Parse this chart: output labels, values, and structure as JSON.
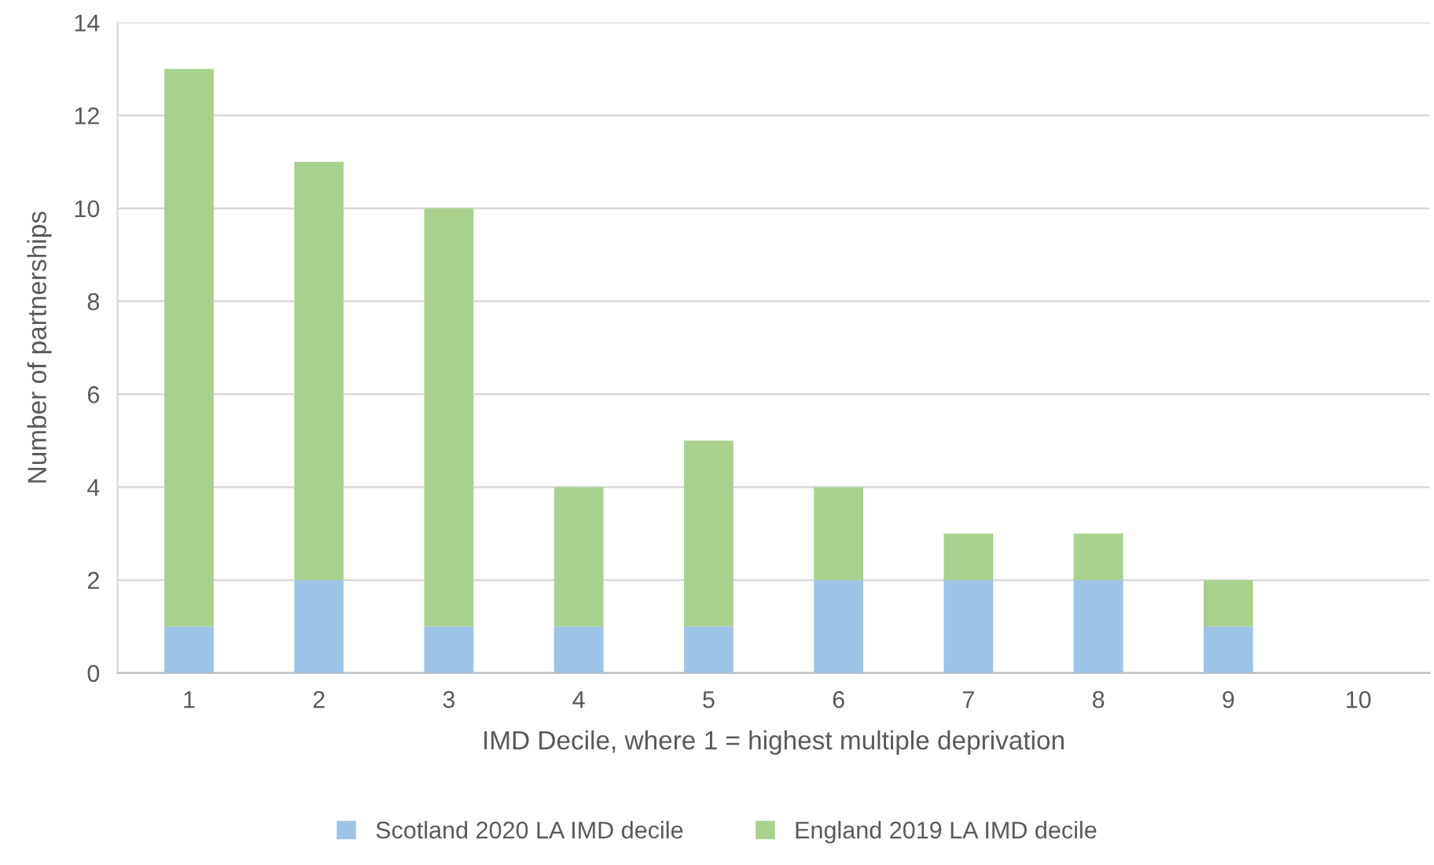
{
  "chart_data": {
    "type": "bar",
    "stacked": true,
    "xlabel": "IMD Decile, where 1 = highest multiple deprivation",
    "ylabel": "Number of partnerships",
    "categories": [
      "1",
      "2",
      "3",
      "4",
      "5",
      "6",
      "7",
      "8",
      "9",
      "10"
    ],
    "series": [
      {
        "name": "Scotland 2020 LA IMD decile",
        "color": "#9dc3e6",
        "values": [
          1,
          2,
          1,
          1,
          1,
          2,
          2,
          2,
          1,
          0
        ]
      },
      {
        "name": "England 2019 LA IMD decile",
        "color": "#a9d18e",
        "values": [
          12,
          9,
          9,
          3,
          4,
          2,
          1,
          1,
          1,
          0
        ]
      }
    ],
    "ylim": [
      0,
      14
    ],
    "yticks": [
      0,
      2,
      4,
      6,
      8,
      10,
      12,
      14
    ],
    "grid": "y",
    "legend": "bottom"
  }
}
